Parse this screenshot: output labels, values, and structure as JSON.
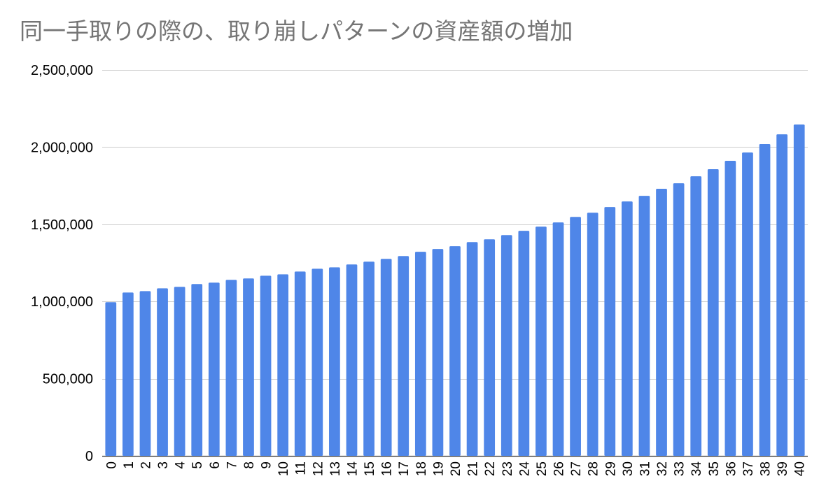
{
  "chart_data": {
    "type": "bar",
    "title": "同一手取りの際の、取り崩しパターンの資産額の増加",
    "xlabel": "",
    "ylabel": "",
    "ylim": [
      0,
      2500000
    ],
    "yticks": [
      0,
      500000,
      1000000,
      1500000,
      2000000,
      2500000
    ],
    "ytick_labels": [
      "0",
      "500,000",
      "1,000,000",
      "1,500,000",
      "2,000,000",
      "2,500,000"
    ],
    "grid": true,
    "legend": "none",
    "bar_color": "#4f86e8",
    "categories": [
      "0",
      "1",
      "2",
      "3",
      "4",
      "5",
      "6",
      "7",
      "8",
      "9",
      "10",
      "11",
      "12",
      "13",
      "14",
      "15",
      "16",
      "17",
      "18",
      "19",
      "20",
      "21",
      "22",
      "23",
      "24",
      "25",
      "26",
      "27",
      "28",
      "29",
      "30",
      "31",
      "32",
      "33",
      "34",
      "35",
      "36",
      "37",
      "38",
      "39",
      "40"
    ],
    "values": [
      995000,
      1058000,
      1067000,
      1085000,
      1095000,
      1113000,
      1122000,
      1140000,
      1149000,
      1167000,
      1176000,
      1194000,
      1212000,
      1221000,
      1240000,
      1258000,
      1276000,
      1294000,
      1322000,
      1340000,
      1358000,
      1385000,
      1403000,
      1430000,
      1458000,
      1485000,
      1512000,
      1548000,
      1575000,
      1612000,
      1648000,
      1684000,
      1730000,
      1766000,
      1811000,
      1857000,
      1911000,
      1965000,
      2020000,
      2083000,
      2146000
    ]
  }
}
